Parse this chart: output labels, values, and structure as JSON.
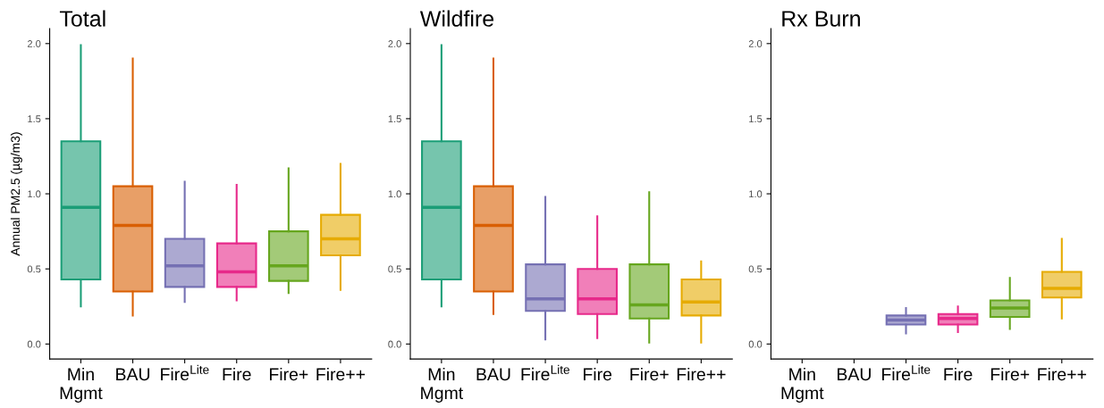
{
  "chart_data": [
    {
      "type": "box",
      "title": "Total",
      "ylabel": "Annual PM2.5 (µg/m3)",
      "categories": [
        "Min\nMgmt",
        "BAU",
        "Fire$^{Lite}$",
        "Fire",
        "Fire+",
        "Fire++"
      ],
      "colors": [
        "#1b9e77",
        "#d95f02",
        "#7570b3",
        "#e7298a",
        "#66a61e",
        "#e6ab02"
      ],
      "ylim": [
        -0.1,
        2.1
      ],
      "yticks": [
        {
          "value": 0,
          "label": "0.0"
        },
        {
          "value": 0.5,
          "label": "0.5"
        },
        {
          "value": 1,
          "label": "1.0"
        },
        {
          "value": 1.5,
          "label": "1.5"
        },
        {
          "value": 2,
          "label": "2.0"
        }
      ],
      "grid": false,
      "boxes": [
        {
          "low": 0.25,
          "q1": 0.43,
          "median": 0.91,
          "q3": 1.35,
          "high": 1.99
        },
        {
          "low": 0.19,
          "q1": 0.35,
          "median": 0.79,
          "q3": 1.05,
          "high": 1.9
        },
        {
          "low": 0.28,
          "q1": 0.38,
          "median": 0.52,
          "q3": 0.7,
          "high": 1.08
        },
        {
          "low": 0.29,
          "q1": 0.38,
          "median": 0.48,
          "q3": 0.67,
          "high": 1.06
        },
        {
          "low": 0.34,
          "q1": 0.42,
          "median": 0.52,
          "q3": 0.75,
          "high": 1.17
        },
        {
          "low": 0.36,
          "q1": 0.59,
          "median": 0.7,
          "q3": 0.86,
          "high": 1.2
        }
      ]
    },
    {
      "type": "box",
      "title": "Wildfire",
      "categories": [
        "Min\nMgmt",
        "BAU",
        "Fire$^{Lite}$",
        "Fire",
        "Fire+",
        "Fire++"
      ],
      "colors": [
        "#1b9e77",
        "#d95f02",
        "#7570b3",
        "#e7298a",
        "#66a61e",
        "#e6ab02"
      ],
      "ylim": [
        -0.1,
        2.1
      ],
      "yticks": [
        {
          "value": 0,
          "label": "0.0"
        },
        {
          "value": 0.5,
          "label": "0.5"
        },
        {
          "value": 1,
          "label": "1.0"
        },
        {
          "value": 1.5,
          "label": "1.5"
        },
        {
          "value": 2,
          "label": "2.0"
        }
      ],
      "grid": false,
      "boxes": [
        {
          "low": 0.25,
          "q1": 0.43,
          "median": 0.91,
          "q3": 1.35,
          "high": 1.99
        },
        {
          "low": 0.2,
          "q1": 0.35,
          "median": 0.79,
          "q3": 1.05,
          "high": 1.9
        },
        {
          "low": 0.03,
          "q1": 0.22,
          "median": 0.3,
          "q3": 0.53,
          "high": 0.98
        },
        {
          "low": 0.04,
          "q1": 0.2,
          "median": 0.3,
          "q3": 0.5,
          "high": 0.85
        },
        {
          "low": 0.01,
          "q1": 0.17,
          "median": 0.26,
          "q3": 0.53,
          "high": 1.01
        },
        {
          "low": 0.01,
          "q1": 0.19,
          "median": 0.28,
          "q3": 0.43,
          "high": 0.55
        }
      ]
    },
    {
      "type": "box",
      "title": "Rx Burn",
      "categories": [
        "Min\nMgmt",
        "BAU",
        "Fire$^{Lite}$",
        "Fire",
        "Fire+",
        "Fire++"
      ],
      "colors": [
        "#1b9e77",
        "#d95f02",
        "#7570b3",
        "#e7298a",
        "#66a61e",
        "#e6ab02"
      ],
      "ylim": [
        -0.1,
        2.1
      ],
      "yticks": [
        {
          "value": 0,
          "label": "0.0"
        },
        {
          "value": 0.5,
          "label": "0.5"
        },
        {
          "value": 1,
          "label": "1.0"
        },
        {
          "value": 1.5,
          "label": "1.5"
        },
        {
          "value": 2,
          "label": "2.0"
        }
      ],
      "grid": false,
      "boxes": [
        null,
        null,
        {
          "low": 0.07,
          "q1": 0.13,
          "median": 0.16,
          "q3": 0.19,
          "high": 0.24
        },
        {
          "low": 0.08,
          "q1": 0.13,
          "median": 0.17,
          "q3": 0.2,
          "high": 0.25
        },
        {
          "low": 0.1,
          "q1": 0.18,
          "median": 0.24,
          "q3": 0.29,
          "high": 0.44
        },
        {
          "low": 0.17,
          "q1": 0.31,
          "median": 0.37,
          "q3": 0.48,
          "high": 0.7
        }
      ]
    }
  ]
}
